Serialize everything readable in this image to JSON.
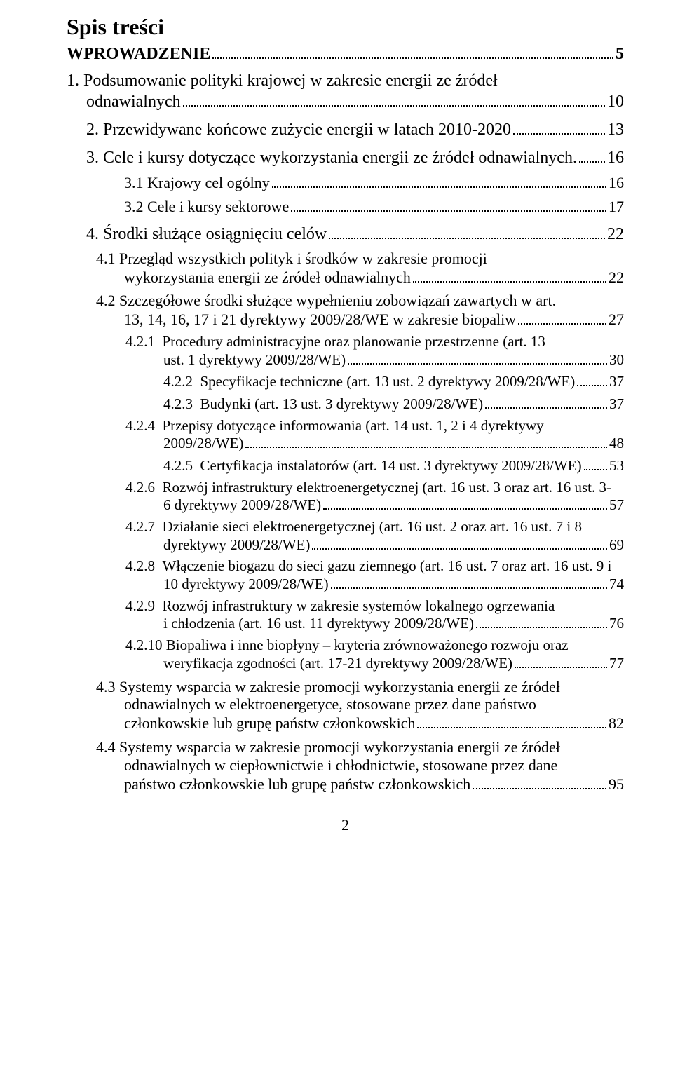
{
  "title": "Spis treści",
  "pageNumber": "2",
  "colors": {
    "text": "#000000",
    "background": "#ffffff"
  },
  "fonts": {
    "family": "Times New Roman",
    "titleSize": 32,
    "lvl0Size": 24,
    "lvl1Size": 24,
    "lvl2Size": 22,
    "lvl3Size": 21
  },
  "entries": [
    {
      "level": "lvl0",
      "pre": "",
      "last": "WPROWADZENIE",
      "page": "5"
    },
    {
      "level": "lvl1",
      "pre": "1. Podsumowanie polityki krajowej w zakresie energii ze źródeł",
      "last": "odnawialnych",
      "page": "10"
    },
    {
      "level": "lvl1",
      "pre": "",
      "last": "2. Przewidywane końcowe zużycie energii w latach 2010-2020",
      "page": "13"
    },
    {
      "level": "lvl1",
      "pre": "",
      "last": "3. Cele i kursy dotyczące wykorzystania energii ze źródeł odnawialnych.",
      "page": "16"
    },
    {
      "level": "lvl2",
      "pre": "",
      "last": "3.1 Krajowy cel ogólny",
      "page": "16"
    },
    {
      "level": "lvl2",
      "pre": "",
      "last": "3.2 Cele i kursy sektorowe",
      "page": "17"
    },
    {
      "level": "lvl1",
      "pre": "",
      "last": "4. Środki służące osiągnięciu celów",
      "page": "22"
    },
    {
      "level": "lvl2",
      "pre": "4.1 Przegląd wszystkich polityk i środków w zakresie promocji",
      "last": "wykorzystania energii ze źródeł odnawialnych",
      "page": "22"
    },
    {
      "level": "lvl2",
      "pre": "4.2 Szczegółowe środki służące wypełnieniu zobowiązań zawartych w art.",
      "last": "13, 14, 16, 17 i 21 dyrektywy 2009/28/WE w zakresie biopaliw",
      "page": "27"
    },
    {
      "level": "lvl3",
      "pre": "4.2.1  Procedury administracyjne oraz planowanie przestrzenne (art. 13",
      "last": "ust. 1 dyrektywy 2009/28/WE)",
      "page": "30"
    },
    {
      "level": "lvl3",
      "pre": "",
      "last": "4.2.2  Specyfikacje techniczne (art. 13 ust. 2 dyrektywy 2009/28/WE)",
      "page": "37"
    },
    {
      "level": "lvl3",
      "pre": "",
      "last": "4.2.3  Budynki (art. 13 ust. 3 dyrektywy 2009/28/WE)",
      "page": "37"
    },
    {
      "level": "lvl3",
      "pre": "4.2.4  Przepisy dotyczące informowania (art. 14 ust. 1, 2 i 4 dyrektywy",
      "last": "2009/28/WE)",
      "page": "48"
    },
    {
      "level": "lvl3",
      "pre": "",
      "last": "4.2.5  Certyfikacja instalatorów (art. 14 ust. 3 dyrektywy 2009/28/WE)",
      "page": "53"
    },
    {
      "level": "lvl3",
      "pre": "4.2.6  Rozwój infrastruktury elektroenergetycznej (art. 16 ust. 3 oraz art. 16 ust. 3-",
      "last": "6 dyrektywy 2009/28/WE)",
      "page": "57"
    },
    {
      "level": "lvl3",
      "pre": "4.2.7  Działanie sieci elektroenergetycznej (art. 16 ust. 2 oraz art. 16 ust. 7 i 8",
      "last": "dyrektywy 2009/28/WE)",
      "page": "69"
    },
    {
      "level": "lvl3",
      "pre": "4.2.8  Włączenie biogazu do sieci gazu ziemnego (art. 16 ust. 7 oraz art. 16 ust. 9 i",
      "last": "10 dyrektywy 2009/28/WE)",
      "page": "74"
    },
    {
      "level": "lvl3",
      "pre": "4.2.9  Rozwój infrastruktury w zakresie systemów lokalnego ogrzewania",
      "last": "i chłodzenia (art. 16 ust. 11 dyrektywy 2009/28/WE)",
      "page": "76"
    },
    {
      "level": "lvl3",
      "pre": "4.2.10 Biopaliwa i inne biopłyny – kryteria zrównoważonego rozwoju oraz",
      "last": "weryfikacja zgodności (art. 17-21 dyrektywy 2009/28/WE)",
      "page": "77"
    },
    {
      "level": "lvl2",
      "pre": "4.3 Systemy wsparcia w zakresie promocji wykorzystania energii ze źródeł odnawialnych w elektroenergetyce, stosowane przez dane państwo",
      "last": "członkowskie lub grupę państw członkowskich",
      "page": "82"
    },
    {
      "level": "lvl2",
      "pre": "4.4 Systemy wsparcia w zakresie promocji wykorzystania energii ze źródeł odnawialnych w ciepłownictwie i chłodnictwie, stosowane przez dane",
      "last": "państwo członkowskie lub grupę państw członkowskich",
      "page": "95"
    }
  ]
}
